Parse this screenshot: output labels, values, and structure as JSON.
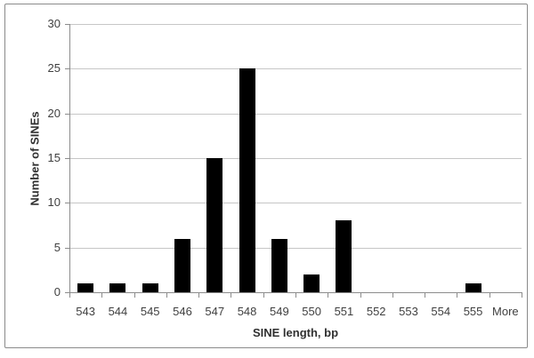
{
  "chart_data": {
    "type": "bar",
    "title": "",
    "categories": [
      "543",
      "544",
      "545",
      "546",
      "547",
      "548",
      "549",
      "550",
      "551",
      "552",
      "553",
      "554",
      "555",
      "More"
    ],
    "values": [
      1,
      1,
      1,
      6,
      15,
      25,
      6,
      2,
      8,
      0,
      0,
      0,
      1,
      0
    ],
    "xlabel": "SINE length, bp",
    "ylabel": "Number of SINEs",
    "ylim": [
      0,
      30
    ],
    "yticks": [
      0,
      5,
      10,
      15,
      20,
      25,
      30
    ],
    "grid": true,
    "legend": "none",
    "bar_color": "#000000",
    "gridline_color": "#c6c6c6",
    "axis_line_color": "#8c8c8c",
    "text_color": "#3f3f3f",
    "frame_border_color": "#8a8a8a",
    "background_color": "#ffffff"
  }
}
